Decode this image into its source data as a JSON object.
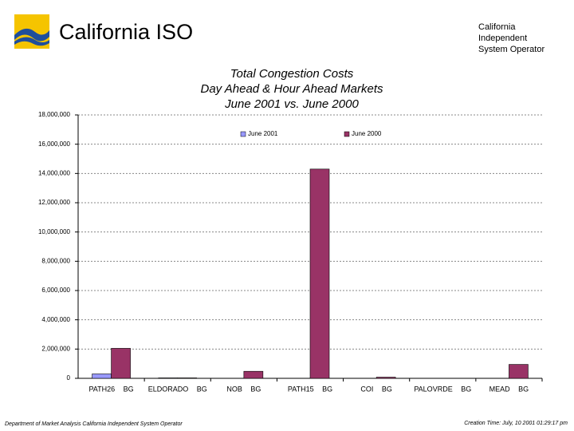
{
  "header": {
    "title": "California ISO",
    "operator": [
      "California",
      "Independent",
      "System Operator"
    ]
  },
  "footer": {
    "left": "Department of Market Analysis California Independent System Operator",
    "right": "Creation Time: July, 10 2001 01:29:17 pm"
  },
  "chart_data": {
    "type": "bar",
    "title": [
      "Total Congestion Costs",
      "Day Ahead & Hour Ahead Markets",
      "June 2001 vs. June 2000"
    ],
    "categories": [
      "PATH26 BG",
      "ELDORADO BG",
      "NOB BG",
      "PATH15 BG",
      "COI BG",
      "PALOVRDE BG",
      "MEAD BG"
    ],
    "series": [
      {
        "name": "June 2001",
        "color": "#9999ff",
        "values": [
          300000,
          30000,
          0,
          0,
          0,
          0,
          0
        ]
      },
      {
        "name": "June 2000",
        "color": "#993366",
        "values": [
          2050000,
          30000,
          480000,
          14300000,
          80000,
          0,
          950000
        ]
      }
    ],
    "ylim": [
      0,
      18000000
    ],
    "yticks": [
      0,
      {
        "value": 2000000,
        "label": "2,000,000"
      },
      {
        "value": 4000000,
        "label": "4,000,000"
      },
      {
        "value": 6000000,
        "label": "6,000,000"
      },
      {
        "value": 8000000,
        "label": "8,000,000"
      },
      {
        "value": 10000000,
        "label": "10,000,000"
      },
      {
        "value": 12000000,
        "label": "12,000,000"
      },
      {
        "value": 14000000,
        "label": "14,000,000"
      },
      {
        "value": 16000000,
        "label": "16,000,000"
      },
      {
        "value": 18000000,
        "label": "18,000,000"
      }
    ],
    "grid": true,
    "legend": "top"
  }
}
